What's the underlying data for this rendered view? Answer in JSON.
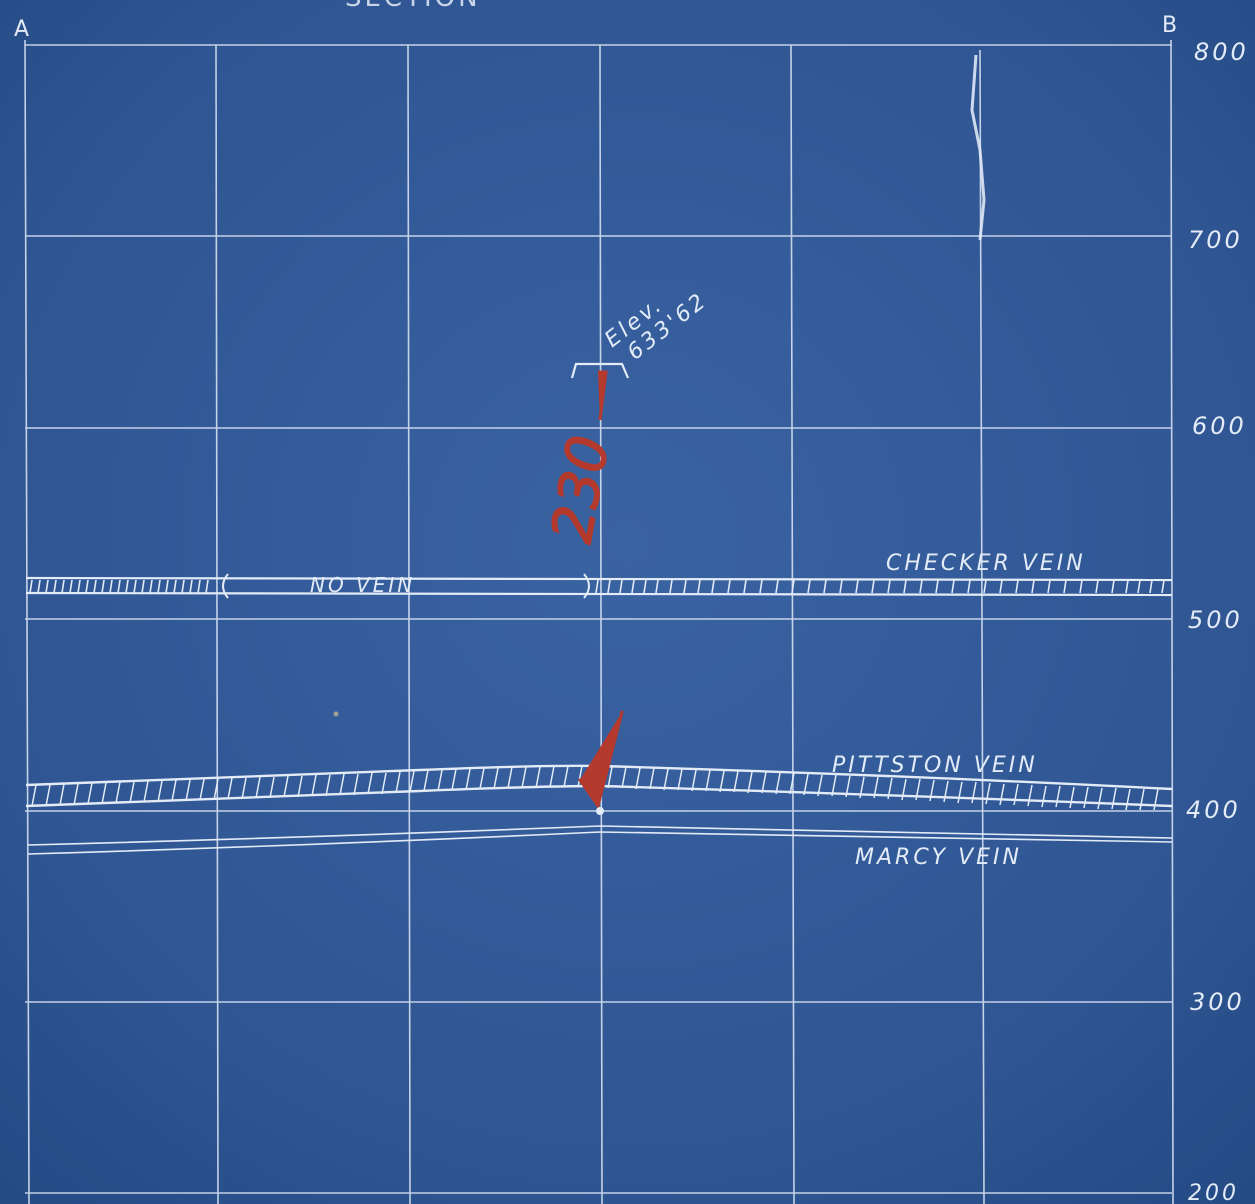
{
  "title_fragment": "SECTION",
  "section_labels": {
    "left": "A",
    "right": "B"
  },
  "elevation_ticks": [
    "800",
    "700",
    "600",
    "500",
    "400",
    "300",
    "200"
  ],
  "veins": {
    "checker": "CHECKER VEIN",
    "no_vein": "NO VEIN",
    "pittston": "PITTSTON VEIN",
    "marcy": "MARCY VEIN"
  },
  "annotations": {
    "elev_label": "Elev.",
    "elev_value": "633'62",
    "red_number": "230"
  },
  "colors": {
    "blueprint": "#2e5490",
    "chalk": "#e3ebf7",
    "red_pencil": "#b53a2e"
  }
}
